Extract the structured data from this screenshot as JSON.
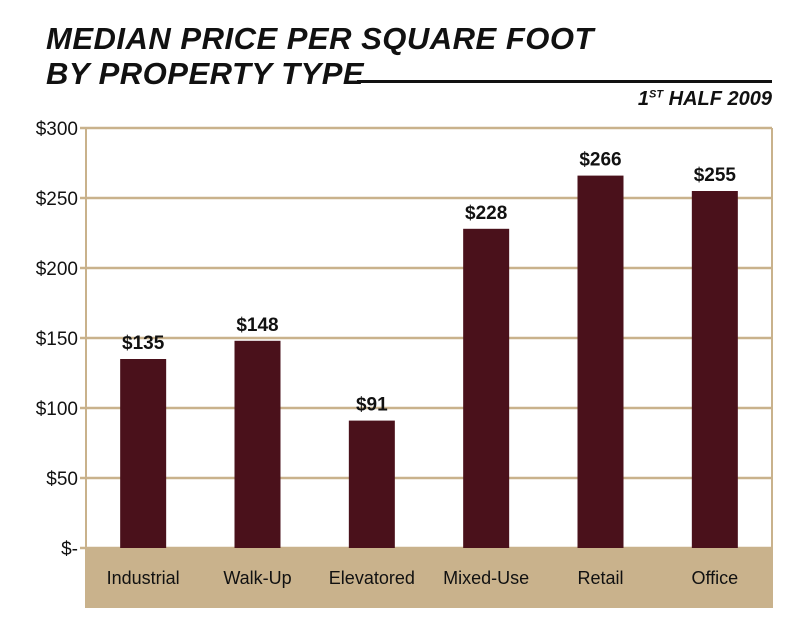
{
  "chart_data": {
    "type": "bar",
    "title": "MEDIAN PRICE PER SQUARE FOOT BY PROPERTY TYPE",
    "title_lines": [
      "MEDIAN PRICE PER SQUARE FOOT",
      "BY PROPERTY TYPE"
    ],
    "subtitle": {
      "ordinal": "1",
      "suffix": "ST",
      "rest": "HALF 2009"
    },
    "categories": [
      "Industrial",
      "Walk-Up",
      "Elevatored",
      "Mixed-Use",
      "Retail",
      "Office"
    ],
    "values": [
      135,
      148,
      91,
      228,
      266,
      255
    ],
    "data_labels": [
      "$135",
      "$148",
      "$91",
      "$228",
      "$266",
      "$255"
    ],
    "ylim": [
      0,
      300
    ],
    "yticks": [
      0,
      50,
      100,
      150,
      200,
      250,
      300
    ],
    "ytick_labels": [
      "$-",
      "$50",
      "$100",
      "$150",
      "$200",
      "$250",
      "$300"
    ],
    "xlabel": "",
    "ylabel": "",
    "grid": true,
    "colors": {
      "bar": "#4a111b",
      "grid": "#c9b28c",
      "category_band": "#c9b28c"
    }
  }
}
